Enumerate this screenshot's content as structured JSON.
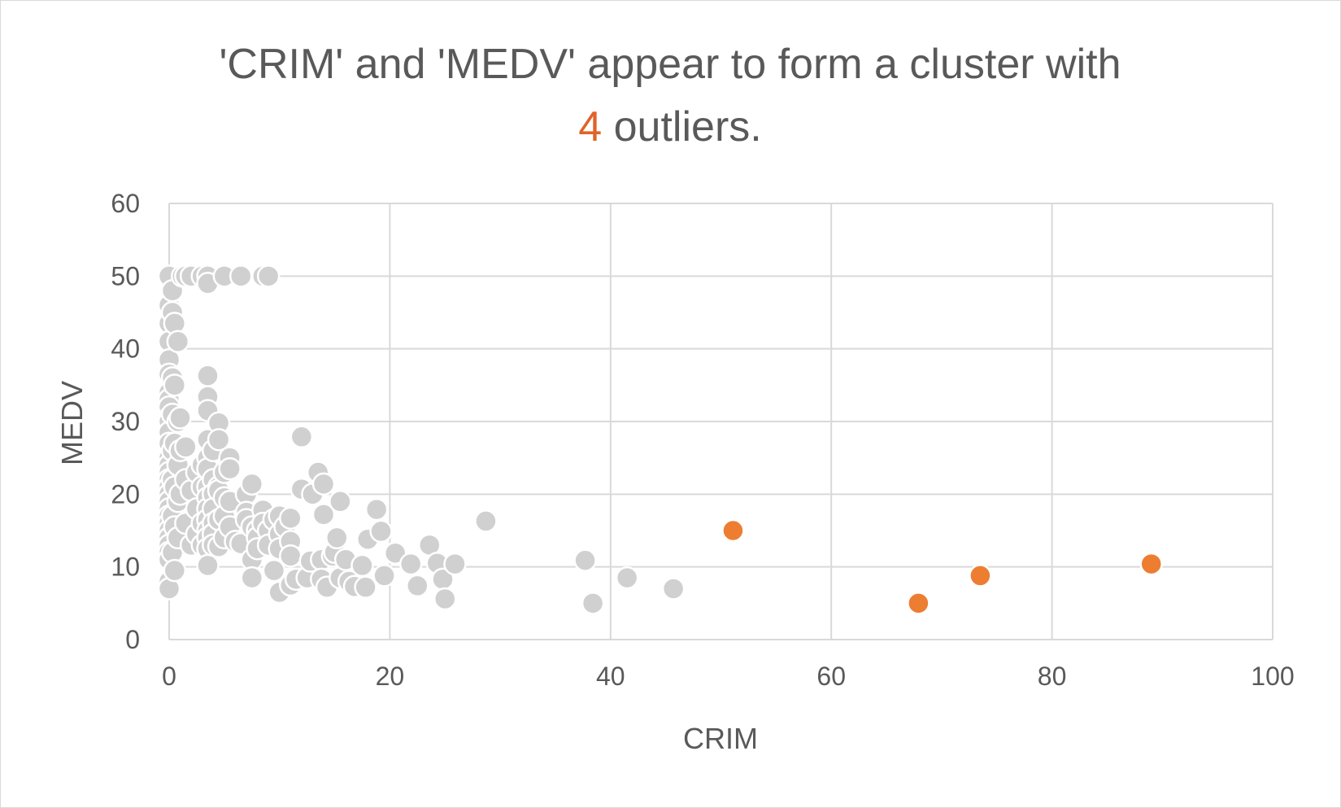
{
  "chart_data": {
    "type": "scatter",
    "title": {
      "line1": "'CRIM' and 'MEDV' appear to form a cluster with",
      "line2_highlight": "4",
      "line2_rest": " outliers."
    },
    "xlabel": "CRIM",
    "ylabel": "MEDV",
    "xlim": [
      0,
      100
    ],
    "ylim": [
      0,
      60
    ],
    "xticks": [
      0,
      20,
      40,
      60,
      80,
      100
    ],
    "yticks": [
      0,
      10,
      20,
      30,
      40,
      50,
      60
    ],
    "xtick_labels": [
      "0",
      "20",
      "40",
      "60",
      "80",
      "100"
    ],
    "ytick_labels": [
      "0",
      "10",
      "20",
      "30",
      "40",
      "50",
      "60"
    ],
    "grid": true,
    "colors": {
      "cluster": "#d0d0d0",
      "outlier": "#ed7d31",
      "highlight_text": "#e0632a",
      "text": "#595959",
      "grid": "#d9d9d9"
    },
    "series": [
      {
        "role": "cluster",
        "points": [
          [
            0.0,
            50.0
          ],
          [
            0.0,
            46.0
          ],
          [
            0.0,
            43.5
          ],
          [
            0.0,
            41.0
          ],
          [
            0.0,
            38.5
          ],
          [
            0.0,
            36.5
          ],
          [
            0.0,
            34.0
          ],
          [
            0.0,
            33.0
          ],
          [
            0.0,
            32.0
          ],
          [
            0.0,
            30.5
          ],
          [
            0.0,
            30.0
          ],
          [
            0.0,
            28.5
          ],
          [
            0.0,
            27.0
          ],
          [
            0.0,
            25.0
          ],
          [
            0.0,
            24.0
          ],
          [
            0.0,
            23.0
          ],
          [
            0.0,
            22.0
          ],
          [
            0.0,
            21.0
          ],
          [
            0.0,
            20.0
          ],
          [
            0.0,
            19.0
          ],
          [
            0.0,
            18.0
          ],
          [
            0.0,
            17.0
          ],
          [
            0.0,
            16.0
          ],
          [
            0.0,
            15.0
          ],
          [
            0.0,
            14.0
          ],
          [
            0.0,
            13.0
          ],
          [
            0.0,
            12.0
          ],
          [
            0.0,
            11.0
          ],
          [
            0.0,
            8.0
          ],
          [
            0.0,
            7.0
          ],
          [
            0.3,
            48.0
          ],
          [
            0.3,
            45.0
          ],
          [
            0.3,
            36.0
          ],
          [
            0.3,
            31.0
          ],
          [
            0.3,
            26.0
          ],
          [
            0.3,
            22.0
          ],
          [
            0.3,
            17.0
          ],
          [
            0.3,
            12.0
          ],
          [
            0.5,
            43.5
          ],
          [
            0.5,
            35.0
          ],
          [
            0.5,
            27.0
          ],
          [
            0.5,
            21.0
          ],
          [
            0.5,
            15.5
          ],
          [
            0.5,
            9.5
          ],
          [
            0.8,
            41.0
          ],
          [
            0.8,
            30.0
          ],
          [
            0.8,
            24.0
          ],
          [
            0.8,
            19.0
          ],
          [
            0.8,
            14.0
          ],
          [
            1.0,
            30.5
          ],
          [
            1.0,
            26.0
          ],
          [
            1.0,
            20.0
          ],
          [
            1.2,
            50.0
          ],
          [
            1.5,
            50.0
          ],
          [
            1.5,
            26.5
          ],
          [
            1.5,
            22.0
          ],
          [
            1.5,
            16.0
          ],
          [
            2.0,
            50.0
          ],
          [
            2.0,
            20.5
          ],
          [
            2.0,
            13.0
          ],
          [
            2.5,
            23.0
          ],
          [
            2.5,
            18.0
          ],
          [
            2.5,
            14.5
          ],
          [
            3.0,
            50.0
          ],
          [
            3.0,
            24.0
          ],
          [
            3.0,
            21.0
          ],
          [
            3.0,
            16.0
          ],
          [
            3.0,
            13.0
          ],
          [
            3.5,
            50.0
          ],
          [
            3.5,
            49.0
          ],
          [
            3.5,
            36.3
          ],
          [
            3.5,
            33.4
          ],
          [
            3.5,
            31.5
          ],
          [
            3.5,
            27.5
          ],
          [
            3.5,
            25.0
          ],
          [
            3.5,
            23.5
          ],
          [
            3.5,
            21.0
          ],
          [
            3.5,
            19.5
          ],
          [
            3.5,
            18.0
          ],
          [
            3.5,
            16.5
          ],
          [
            3.5,
            15.0
          ],
          [
            3.5,
            14.0
          ],
          [
            3.5,
            12.5
          ],
          [
            3.5,
            10.2
          ],
          [
            4.0,
            26.0
          ],
          [
            4.0,
            22.0
          ],
          [
            4.0,
            20.0
          ],
          [
            4.0,
            18.0
          ],
          [
            4.0,
            16.0
          ],
          [
            4.0,
            14.5
          ],
          [
            4.0,
            13.0
          ],
          [
            4.5,
            29.8
          ],
          [
            4.5,
            27.5
          ],
          [
            4.5,
            21.0
          ],
          [
            4.5,
            20.5
          ],
          [
            4.5,
            16.5
          ],
          [
            4.5,
            12.8
          ],
          [
            5.0,
            50.0
          ],
          [
            5.0,
            23.0
          ],
          [
            5.0,
            19.5
          ],
          [
            5.0,
            17.0
          ],
          [
            5.0,
            14.0
          ],
          [
            5.5,
            25.0
          ],
          [
            5.5,
            23.5
          ],
          [
            5.5,
            19.0
          ],
          [
            5.5,
            15.5
          ],
          [
            6.0,
            13.5
          ],
          [
            6.5,
            50.0
          ],
          [
            6.5,
            13.2
          ],
          [
            7.0,
            20.0
          ],
          [
            7.0,
            17.5
          ],
          [
            7.0,
            16.5
          ],
          [
            7.5,
            21.4
          ],
          [
            7.5,
            15.5
          ],
          [
            7.5,
            11.0
          ],
          [
            7.5,
            8.5
          ],
          [
            8.0,
            15.0
          ],
          [
            8.0,
            14.0
          ],
          [
            8.0,
            12.5
          ],
          [
            8.5,
            50.0
          ],
          [
            8.5,
            17.8
          ],
          [
            8.5,
            16.0
          ],
          [
            9.0,
            50.0
          ],
          [
            9.0,
            15.0
          ],
          [
            9.0,
            13.0
          ],
          [
            9.5,
            9.5
          ],
          [
            9.5,
            16.5
          ],
          [
            10.0,
            17.0
          ],
          [
            10.0,
            14.5
          ],
          [
            10.0,
            12.5
          ],
          [
            10.0,
            6.5
          ],
          [
            10.5,
            15.5
          ],
          [
            11.0,
            16.7
          ],
          [
            11.0,
            13.5
          ],
          [
            11.0,
            11.5
          ],
          [
            11.0,
            7.5
          ],
          [
            11.5,
            8.3
          ],
          [
            12.0,
            27.9
          ],
          [
            12.0,
            20.7
          ],
          [
            12.5,
            8.5
          ],
          [
            12.8,
            10.8
          ],
          [
            13.0,
            20.0
          ],
          [
            13.5,
            23.0
          ],
          [
            13.8,
            11.0
          ],
          [
            13.8,
            8.3
          ],
          [
            14.0,
            21.4
          ],
          [
            14.0,
            17.2
          ],
          [
            14.3,
            7.2
          ],
          [
            14.8,
            11.5
          ],
          [
            15.0,
            12.0
          ],
          [
            15.2,
            14.0
          ],
          [
            15.5,
            8.5
          ],
          [
            15.5,
            19.0
          ],
          [
            16.0,
            11.0
          ],
          [
            16.3,
            8.0
          ],
          [
            16.8,
            7.3
          ],
          [
            17.5,
            10.2
          ],
          [
            17.8,
            7.2
          ],
          [
            18.0,
            13.8
          ],
          [
            18.8,
            17.9
          ],
          [
            19.2,
            14.9
          ],
          [
            19.5,
            8.8
          ],
          [
            20.5,
            11.9
          ],
          [
            21.9,
            10.4
          ],
          [
            22.5,
            7.4
          ],
          [
            23.6,
            13.0
          ],
          [
            24.3,
            10.5
          ],
          [
            24.8,
            8.3
          ],
          [
            25.0,
            5.6
          ],
          [
            25.9,
            10.4
          ],
          [
            28.7,
            16.3
          ],
          [
            37.7,
            10.9
          ],
          [
            38.4,
            5.0
          ],
          [
            41.5,
            8.5
          ],
          [
            45.7,
            7.0
          ]
        ]
      },
      {
        "role": "outlier",
        "points": [
          [
            51.1,
            15.0
          ],
          [
            67.9,
            5.0
          ],
          [
            73.5,
            8.8
          ],
          [
            89.0,
            10.4
          ]
        ]
      }
    ]
  }
}
